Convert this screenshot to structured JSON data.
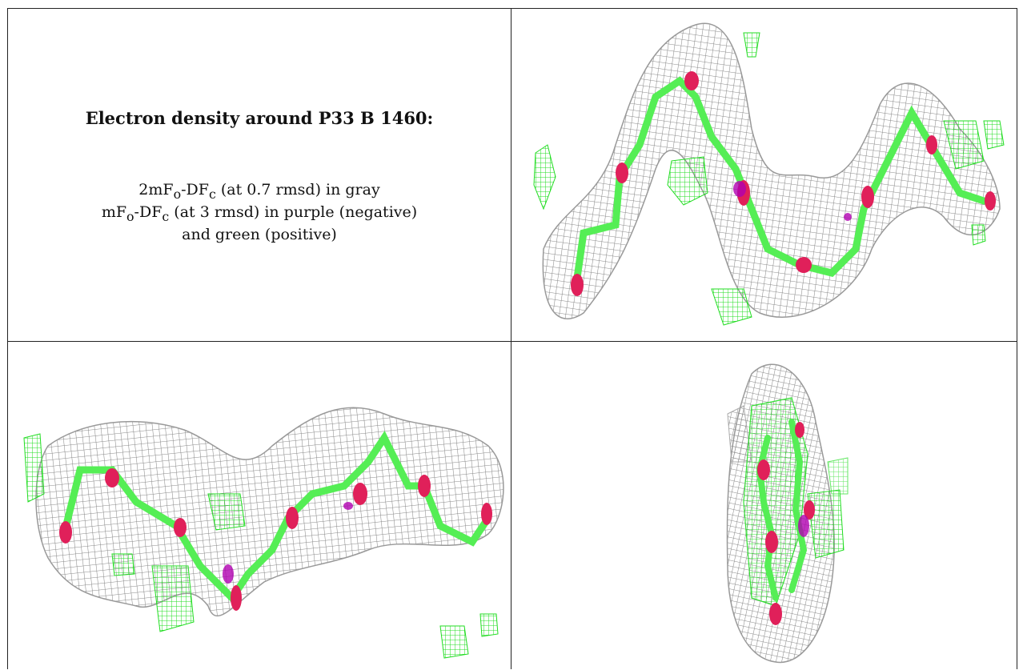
{
  "caption": {
    "heading": "Electron density around P33 B 1460:",
    "line1": {
      "pre": "2mF",
      "sub1": "o",
      "mid": "-DF",
      "sub2": "c",
      "post": " (at 0.7 rmsd) in gray"
    },
    "line2": {
      "pre": "mF",
      "sub1": "o",
      "mid": "-DF",
      "sub2": "c",
      "post": " (at 3 rmsd) in purple (negative)"
    },
    "line3": "and green (positive)"
  },
  "colors": {
    "mesh_2fofc": "#8a8a8a",
    "diff_positive": "#22dd22",
    "diff_negative": "#b000b0",
    "carbon_atoms": "#55ee55",
    "oxygen_atoms": "#e0205a"
  },
  "panels": [
    {
      "name": "view-top-right"
    },
    {
      "name": "view-bottom-left"
    },
    {
      "name": "view-bottom-right"
    }
  ]
}
